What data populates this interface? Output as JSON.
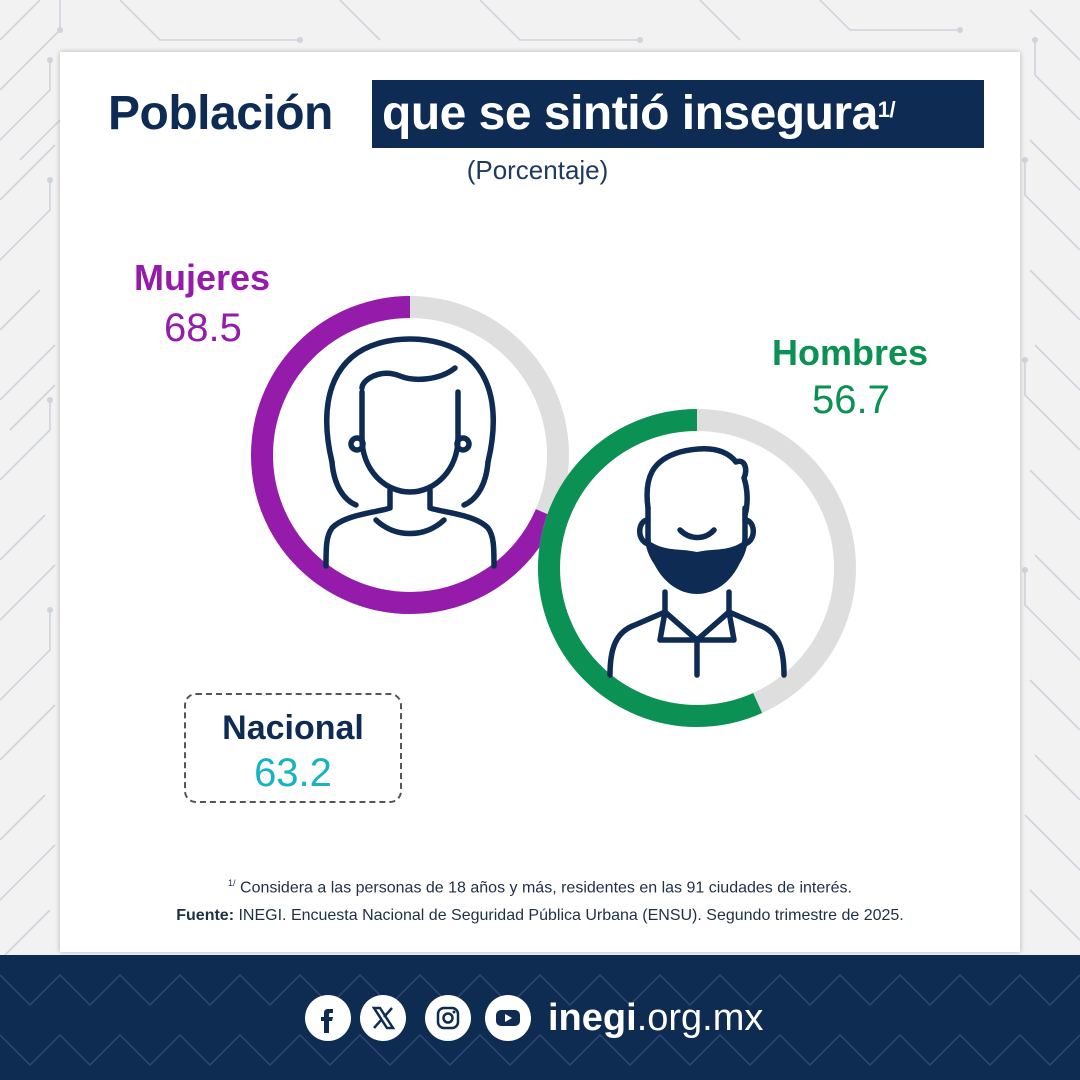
{
  "title": {
    "part1": "Población",
    "part2": "que se sintió insegura",
    "footnote_mark": "1/"
  },
  "subtitle": "(Porcentaje)",
  "chart_data": {
    "type": "donut",
    "title": "Población que se sintió insegura",
    "unit": "Porcentaje",
    "series": [
      {
        "name": "Mujeres",
        "value": 68.5,
        "color": "#951bab",
        "track_color": "#dedede",
        "icon": "woman-icon"
      },
      {
        "name": "Hombres",
        "value": 56.7,
        "color": "#0b9153",
        "track_color": "#dedede",
        "icon": "man-icon"
      }
    ],
    "national": {
      "name": "Nacional",
      "value": 63.2,
      "color": "#17b3be"
    }
  },
  "labels": {
    "women_name": "Mujeres",
    "women_value": "68.5",
    "men_name": "Hombres",
    "men_value": "56.7",
    "national_name": "Nacional",
    "national_value": "63.2"
  },
  "footnote": {
    "mark": "1/",
    "text": "Considera a las personas de 18 años y más, residentes en las 91 ciudades de interés.",
    "source_label": "Fuente:",
    "source_text": "INEGI. Encuesta Nacional de Seguridad Pública Urbana (ENSU). Segundo trimestre de 2025."
  },
  "footer": {
    "social_icons": [
      "facebook-icon",
      "x-icon",
      "instagram-icon",
      "youtube-icon"
    ],
    "url_bold": "inegi",
    "url_rest": ".org.mx"
  },
  "colors": {
    "navy": "#0d2b53",
    "purple": "#951bab",
    "green": "#0b9153",
    "teal": "#17b3be",
    "track": "#dedede"
  }
}
